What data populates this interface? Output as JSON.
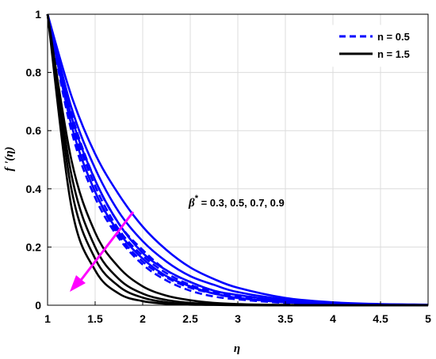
{
  "chart_data": {
    "type": "line",
    "title": "",
    "xlabel": "η",
    "ylabel": "f '(η)",
    "xlim": [
      1,
      5
    ],
    "ylim": [
      0,
      1
    ],
    "xticks": [
      "1",
      "1.5",
      "2",
      "2.5",
      "3",
      "3.5",
      "4",
      "4.5",
      "5"
    ],
    "yticks": [
      "0",
      "0.2",
      "0.4",
      "0.6",
      "0.8",
      "1"
    ],
    "grid": true,
    "legend_position": "top-right",
    "legend": [
      {
        "label": "n = 0.5",
        "color": "#0000ff",
        "dash": "dashed"
      },
      {
        "label": "n = 1.5",
        "color": "#000000",
        "dash": "solid"
      }
    ],
    "annotation": {
      "symbol": "β",
      "superscript": "*",
      "text": " = 0.3, 0.5, 0.7, 0.9",
      "arrow_color": "#ff00ff"
    },
    "x": [
      1,
      1.25,
      1.5,
      1.75,
      2,
      2.25,
      2.5,
      2.75,
      3,
      3.5,
      4,
      4.5,
      5
    ],
    "series": [
      {
        "color": "#0000ff",
        "style": "dashed",
        "values": [
          1,
          0.66,
          0.43,
          0.28,
          0.19,
          0.12,
          0.08,
          0.05,
          0.035,
          0.015,
          0.006,
          0.003,
          0.001
        ]
      },
      {
        "color": "#0000ff",
        "style": "dashed",
        "values": [
          1,
          0.64,
          0.41,
          0.26,
          0.17,
          0.11,
          0.07,
          0.045,
          0.03,
          0.012,
          0.005,
          0.002,
          0.001
        ]
      },
      {
        "color": "#0000ff",
        "style": "dashed",
        "values": [
          1,
          0.62,
          0.39,
          0.24,
          0.15,
          0.095,
          0.06,
          0.04,
          0.025,
          0.01,
          0.004,
          0.002,
          0.001
        ]
      },
      {
        "color": "#0000ff",
        "style": "dashed",
        "values": [
          1,
          0.6,
          0.37,
          0.23,
          0.14,
          0.085,
          0.05,
          0.03,
          0.02,
          0.008,
          0.003,
          0.001,
          0
        ]
      },
      {
        "color": "#0000ff",
        "style": "solid",
        "values": [
          1,
          0.72,
          0.52,
          0.38,
          0.27,
          0.19,
          0.13,
          0.09,
          0.06,
          0.025,
          0.01,
          0.004,
          0.002
        ]
      },
      {
        "color": "#0000ff",
        "style": "solid",
        "values": [
          1,
          0.68,
          0.47,
          0.32,
          0.22,
          0.15,
          0.1,
          0.07,
          0.045,
          0.02,
          0.008,
          0.003,
          0.001
        ]
      },
      {
        "color": "#0000ff",
        "style": "solid",
        "values": [
          1,
          0.65,
          0.43,
          0.28,
          0.18,
          0.12,
          0.08,
          0.05,
          0.035,
          0.015,
          0.006,
          0.002,
          0.001
        ]
      },
      {
        "color": "#0000ff",
        "style": "solid",
        "values": [
          1,
          0.62,
          0.39,
          0.25,
          0.16,
          0.1,
          0.065,
          0.04,
          0.025,
          0.01,
          0.004,
          0.002,
          0
        ]
      },
      {
        "color": "#000000",
        "style": "solid",
        "values": [
          1,
          0.5,
          0.25,
          0.13,
          0.065,
          0.033,
          0.017,
          0.008,
          0.004,
          0.001,
          0,
          0,
          0
        ]
      },
      {
        "color": "#000000",
        "style": "solid",
        "values": [
          1,
          0.45,
          0.2,
          0.09,
          0.04,
          0.018,
          0.008,
          0.004,
          0.002,
          0,
          0,
          0,
          0
        ]
      },
      {
        "color": "#000000",
        "style": "solid",
        "values": [
          1,
          0.4,
          0.16,
          0.065,
          0.026,
          0.01,
          0.004,
          0.002,
          0.001,
          0,
          0,
          0,
          0
        ]
      },
      {
        "color": "#000000",
        "style": "solid",
        "values": [
          1,
          0.34,
          0.12,
          0.04,
          0.014,
          0.005,
          0.002,
          0.001,
          0,
          0,
          0,
          0,
          0
        ]
      }
    ]
  }
}
